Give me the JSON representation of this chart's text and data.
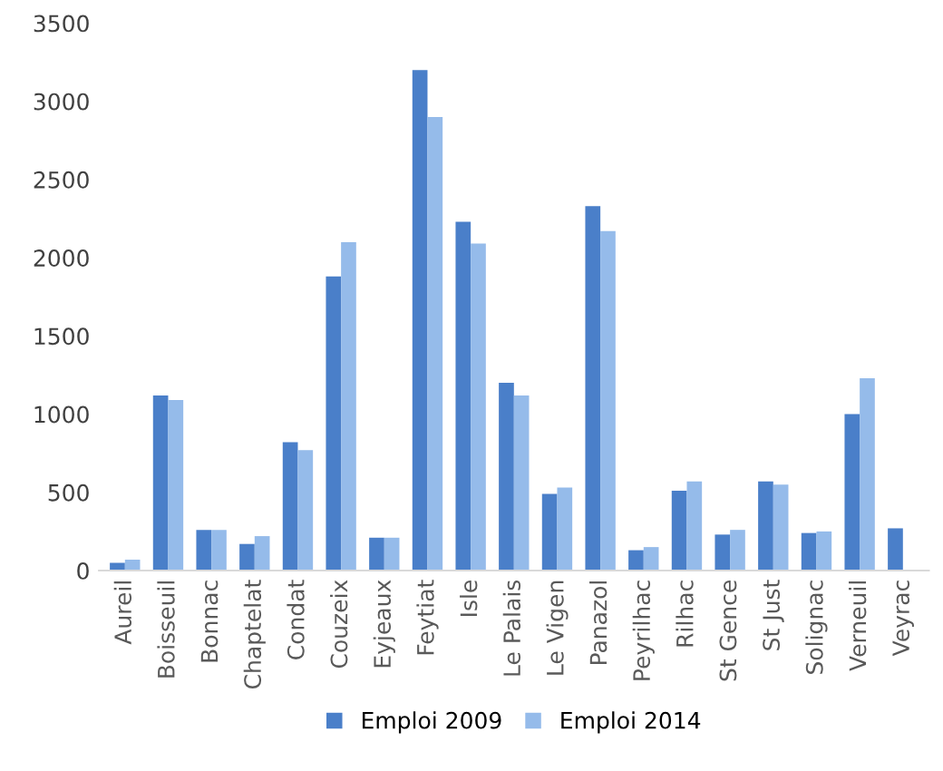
{
  "chart_data": {
    "type": "bar",
    "categories": [
      "Aureil",
      "Boisseuil",
      "Bonnac",
      "Chaptelat",
      "Condat",
      "Couzeix",
      "Eyjeaux",
      "Feytiat",
      "Isle",
      "Le Palais",
      "Le Vigen",
      "Panazol",
      "Peyrilhac",
      "Rilhac",
      "St Gence",
      "St Just",
      "Solignac",
      "Verneuil",
      "Veyrac"
    ],
    "series": [
      {
        "name": "Emploi 2009",
        "color": "#4a7fc9",
        "values": [
          50,
          1120,
          260,
          170,
          820,
          1880,
          210,
          3200,
          2230,
          1200,
          490,
          2330,
          130,
          510,
          230,
          570,
          240,
          1000,
          270
        ]
      },
      {
        "name": "Emploi 2014",
        "color": "#95bbea",
        "values": [
          70,
          1090,
          260,
          220,
          770,
          2100,
          210,
          2900,
          2090,
          1120,
          530,
          2170,
          150,
          570,
          260,
          550,
          250,
          1230,
          null
        ]
      }
    ],
    "ylim": [
      0,
      3500
    ],
    "yticks": [
      0,
      500,
      1000,
      1500,
      2000,
      2500,
      3000,
      3500
    ],
    "grid": false,
    "legend": "bottom"
  }
}
